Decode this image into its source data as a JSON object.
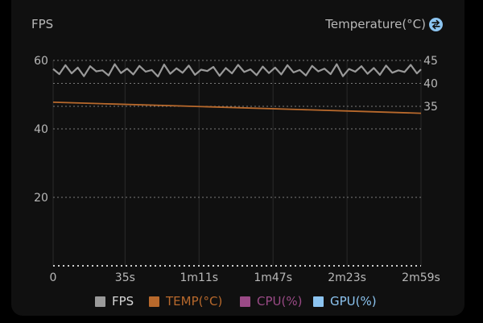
{
  "chart_data": {
    "type": "line",
    "left_axis_title": "FPS",
    "right_axis_title": "Temperature(°C)",
    "x_tick_labels": [
      "0",
      "35s",
      "1m11s",
      "1m47s",
      "2m23s",
      "2m59s"
    ],
    "x_tick_seconds": [
      0,
      35,
      71,
      107,
      143,
      179
    ],
    "xlim": [
      0,
      179
    ],
    "left_ylim": [
      0,
      60
    ],
    "left_ticks": [
      20,
      40,
      60
    ],
    "right_ylim": [
      35,
      45
    ],
    "right_ticks": [
      35,
      40,
      45
    ],
    "grid": true,
    "legend_position": "bottom",
    "series": [
      {
        "name": "FPS",
        "color": "#9a9a9a",
        "axis": "left",
        "x": [
          0,
          3,
          6,
          9,
          12,
          15,
          18,
          21,
          24,
          27,
          30,
          33,
          36,
          39,
          42,
          45,
          48,
          51,
          54,
          57,
          60,
          63,
          66,
          69,
          72,
          75,
          78,
          81,
          84,
          87,
          90,
          93,
          96,
          99,
          102,
          105,
          108,
          111,
          114,
          117,
          120,
          123,
          126,
          129,
          132,
          135,
          138,
          141,
          144,
          147,
          150,
          153,
          156,
          159,
          162,
          165,
          168,
          171,
          174,
          177,
          179
        ],
        "values": [
          57.5,
          56.0,
          58.6,
          56.2,
          57.9,
          55.4,
          58.3,
          56.8,
          57.1,
          55.6,
          58.9,
          56.3,
          57.6,
          55.9,
          58.4,
          56.7,
          57.2,
          55.3,
          58.8,
          56.1,
          57.7,
          56.4,
          58.5,
          55.8,
          57.3,
          56.9,
          58.1,
          55.5,
          57.8,
          56.2,
          58.7,
          56.6,
          57.4,
          55.7,
          58.2,
          56.3,
          57.9,
          55.9,
          58.6,
          56.5,
          57.2,
          55.6,
          58.4,
          56.8,
          57.6,
          56.0,
          58.9,
          55.4,
          57.5,
          56.7,
          58.3,
          56.1,
          57.8,
          55.8,
          58.5,
          56.4,
          57.1,
          56.6,
          58.7,
          56.2,
          57.4
        ]
      },
      {
        "name": "TEMP(°C)",
        "color": "#b8692c",
        "axis": "right",
        "x": [
          0,
          30,
          60,
          90,
          120,
          150,
          179
        ],
        "values": [
          35.9,
          35.5,
          35.1,
          34.7,
          34.3,
          33.9,
          33.5
        ]
      },
      {
        "name": "CPU(%)",
        "color": "#9a4a86",
        "axis": "left",
        "x": [],
        "values": []
      },
      {
        "name": "GPU(%)",
        "color": "#8cc4f0",
        "axis": "left",
        "x": [],
        "values": []
      }
    ]
  },
  "colors": {
    "background": "#101010",
    "grid": "#7a7a7a",
    "tick_label": "#b8b8b8",
    "swap_icon": "#8cc4f0"
  },
  "icons": {
    "swap": "swap-arrows-icon"
  }
}
